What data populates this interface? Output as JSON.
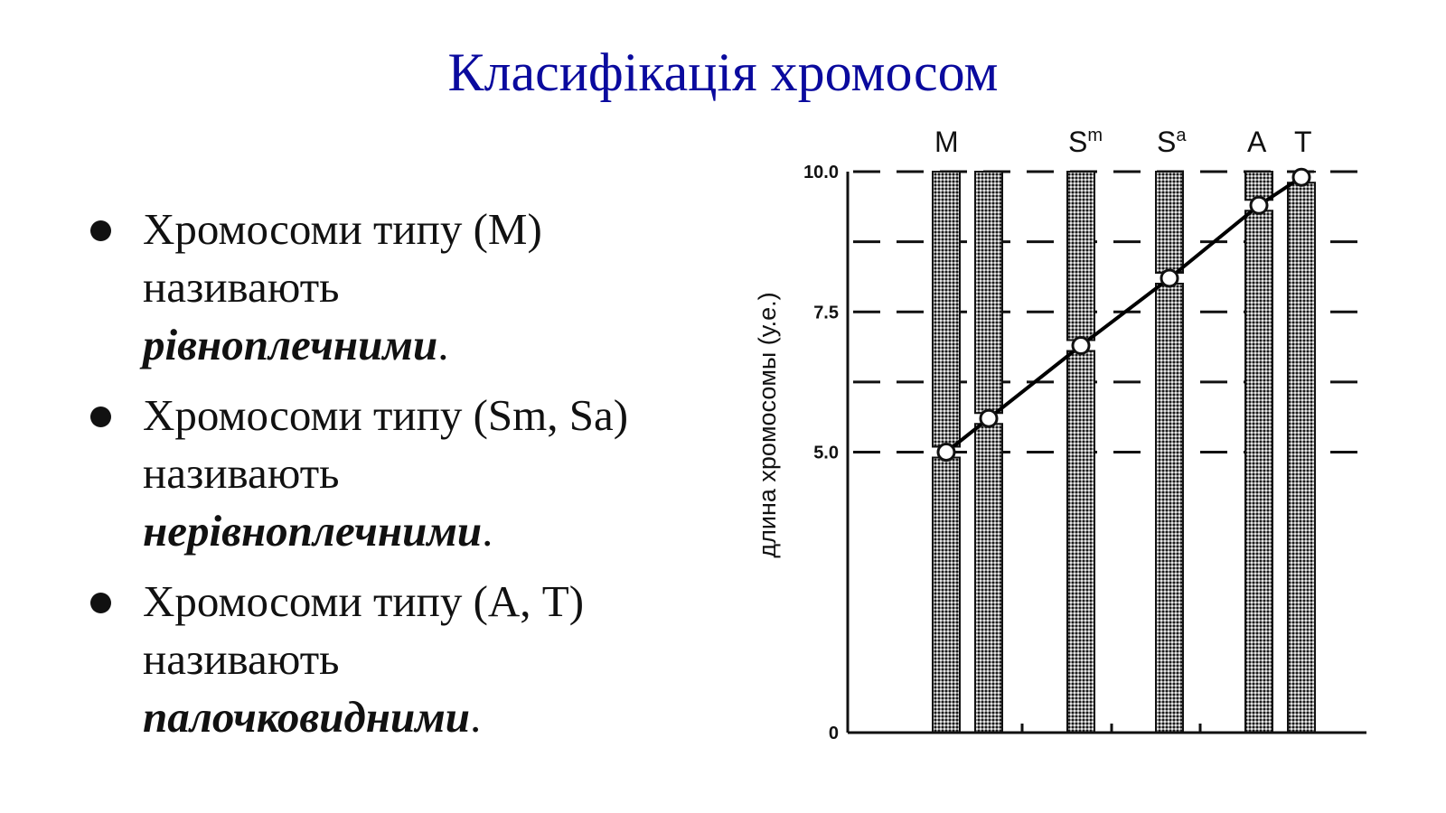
{
  "slide": {
    "title": "Класифікація хромосом"
  },
  "bullets": [
    {
      "pre": "Хромосоми типу (М) називають ",
      "term": "рівноплечними",
      "post": "."
    },
    {
      "pre": "Хромосоми типу (Sm, Sa) називають ",
      "term": "нерівноплечними",
      "post": "."
    },
    {
      "pre": "Хромосоми типу (А, Т) називають ",
      "term": "палочковидними",
      "post": "."
    }
  ],
  "chart_data": {
    "type": "bar",
    "ylabel": "длина хромосомы (у.е.)",
    "ylim": [
      0,
      10
    ],
    "yticks": [
      "0",
      "5.0",
      "7.5",
      "10.0"
    ],
    "group_labels": [
      {
        "base": "M",
        "sup": ""
      },
      {
        "base": "S",
        "sup": "m"
      },
      {
        "base": "S",
        "sup": "a"
      },
      {
        "base": "A",
        "sup": ""
      },
      {
        "base": "T",
        "sup": ""
      }
    ],
    "centromere_positions": [
      5.0,
      5.6,
      6.9,
      8.1,
      9.4,
      9.9
    ],
    "chromosome_length": 10.0,
    "grid": true,
    "colors": {
      "bar_fill": "#777777",
      "line": "#000000",
      "point_fill": "#ffffff"
    }
  }
}
